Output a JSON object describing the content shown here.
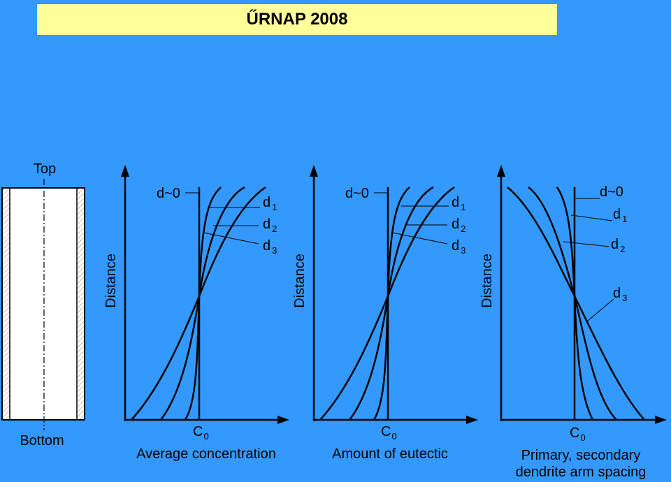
{
  "title": "ŰRNAP 2008",
  "sample": {
    "top_label": "Top",
    "bottom_label": "Bottom"
  },
  "panels": [
    {
      "ylabel": "Distance",
      "xlabel": "Average concentration",
      "c0_main": "C",
      "c0_sub": "0",
      "curves": [
        {
          "main": "d~0",
          "sub": ""
        },
        {
          "main": "d",
          "sub": "1"
        },
        {
          "main": "d",
          "sub": "2"
        },
        {
          "main": "d",
          "sub": "3"
        }
      ]
    },
    {
      "ylabel": "Distance",
      "xlabel": "Amount of eutectic",
      "c0_main": "C",
      "c0_sub": "0",
      "curves": [
        {
          "main": "d~0",
          "sub": ""
        },
        {
          "main": "d",
          "sub": "1"
        },
        {
          "main": "d",
          "sub": "2"
        },
        {
          "main": "d",
          "sub": "3"
        }
      ]
    },
    {
      "ylabel": "Distance",
      "xlabel_line1": "Primary, secondary",
      "xlabel_line2": "dendrite arm spacing",
      "c0_main": "C",
      "c0_sub": "0",
      "curves": [
        {
          "main": "d~0",
          "sub": ""
        },
        {
          "main": "d",
          "sub": "1"
        },
        {
          "main": "d",
          "sub": "2"
        },
        {
          "main": "d",
          "sub": "3"
        }
      ]
    }
  ],
  "colors": {
    "background": "#3399ff",
    "banner": "#ffff99",
    "ink": "#000000",
    "sample_fill": "#ffffff"
  }
}
